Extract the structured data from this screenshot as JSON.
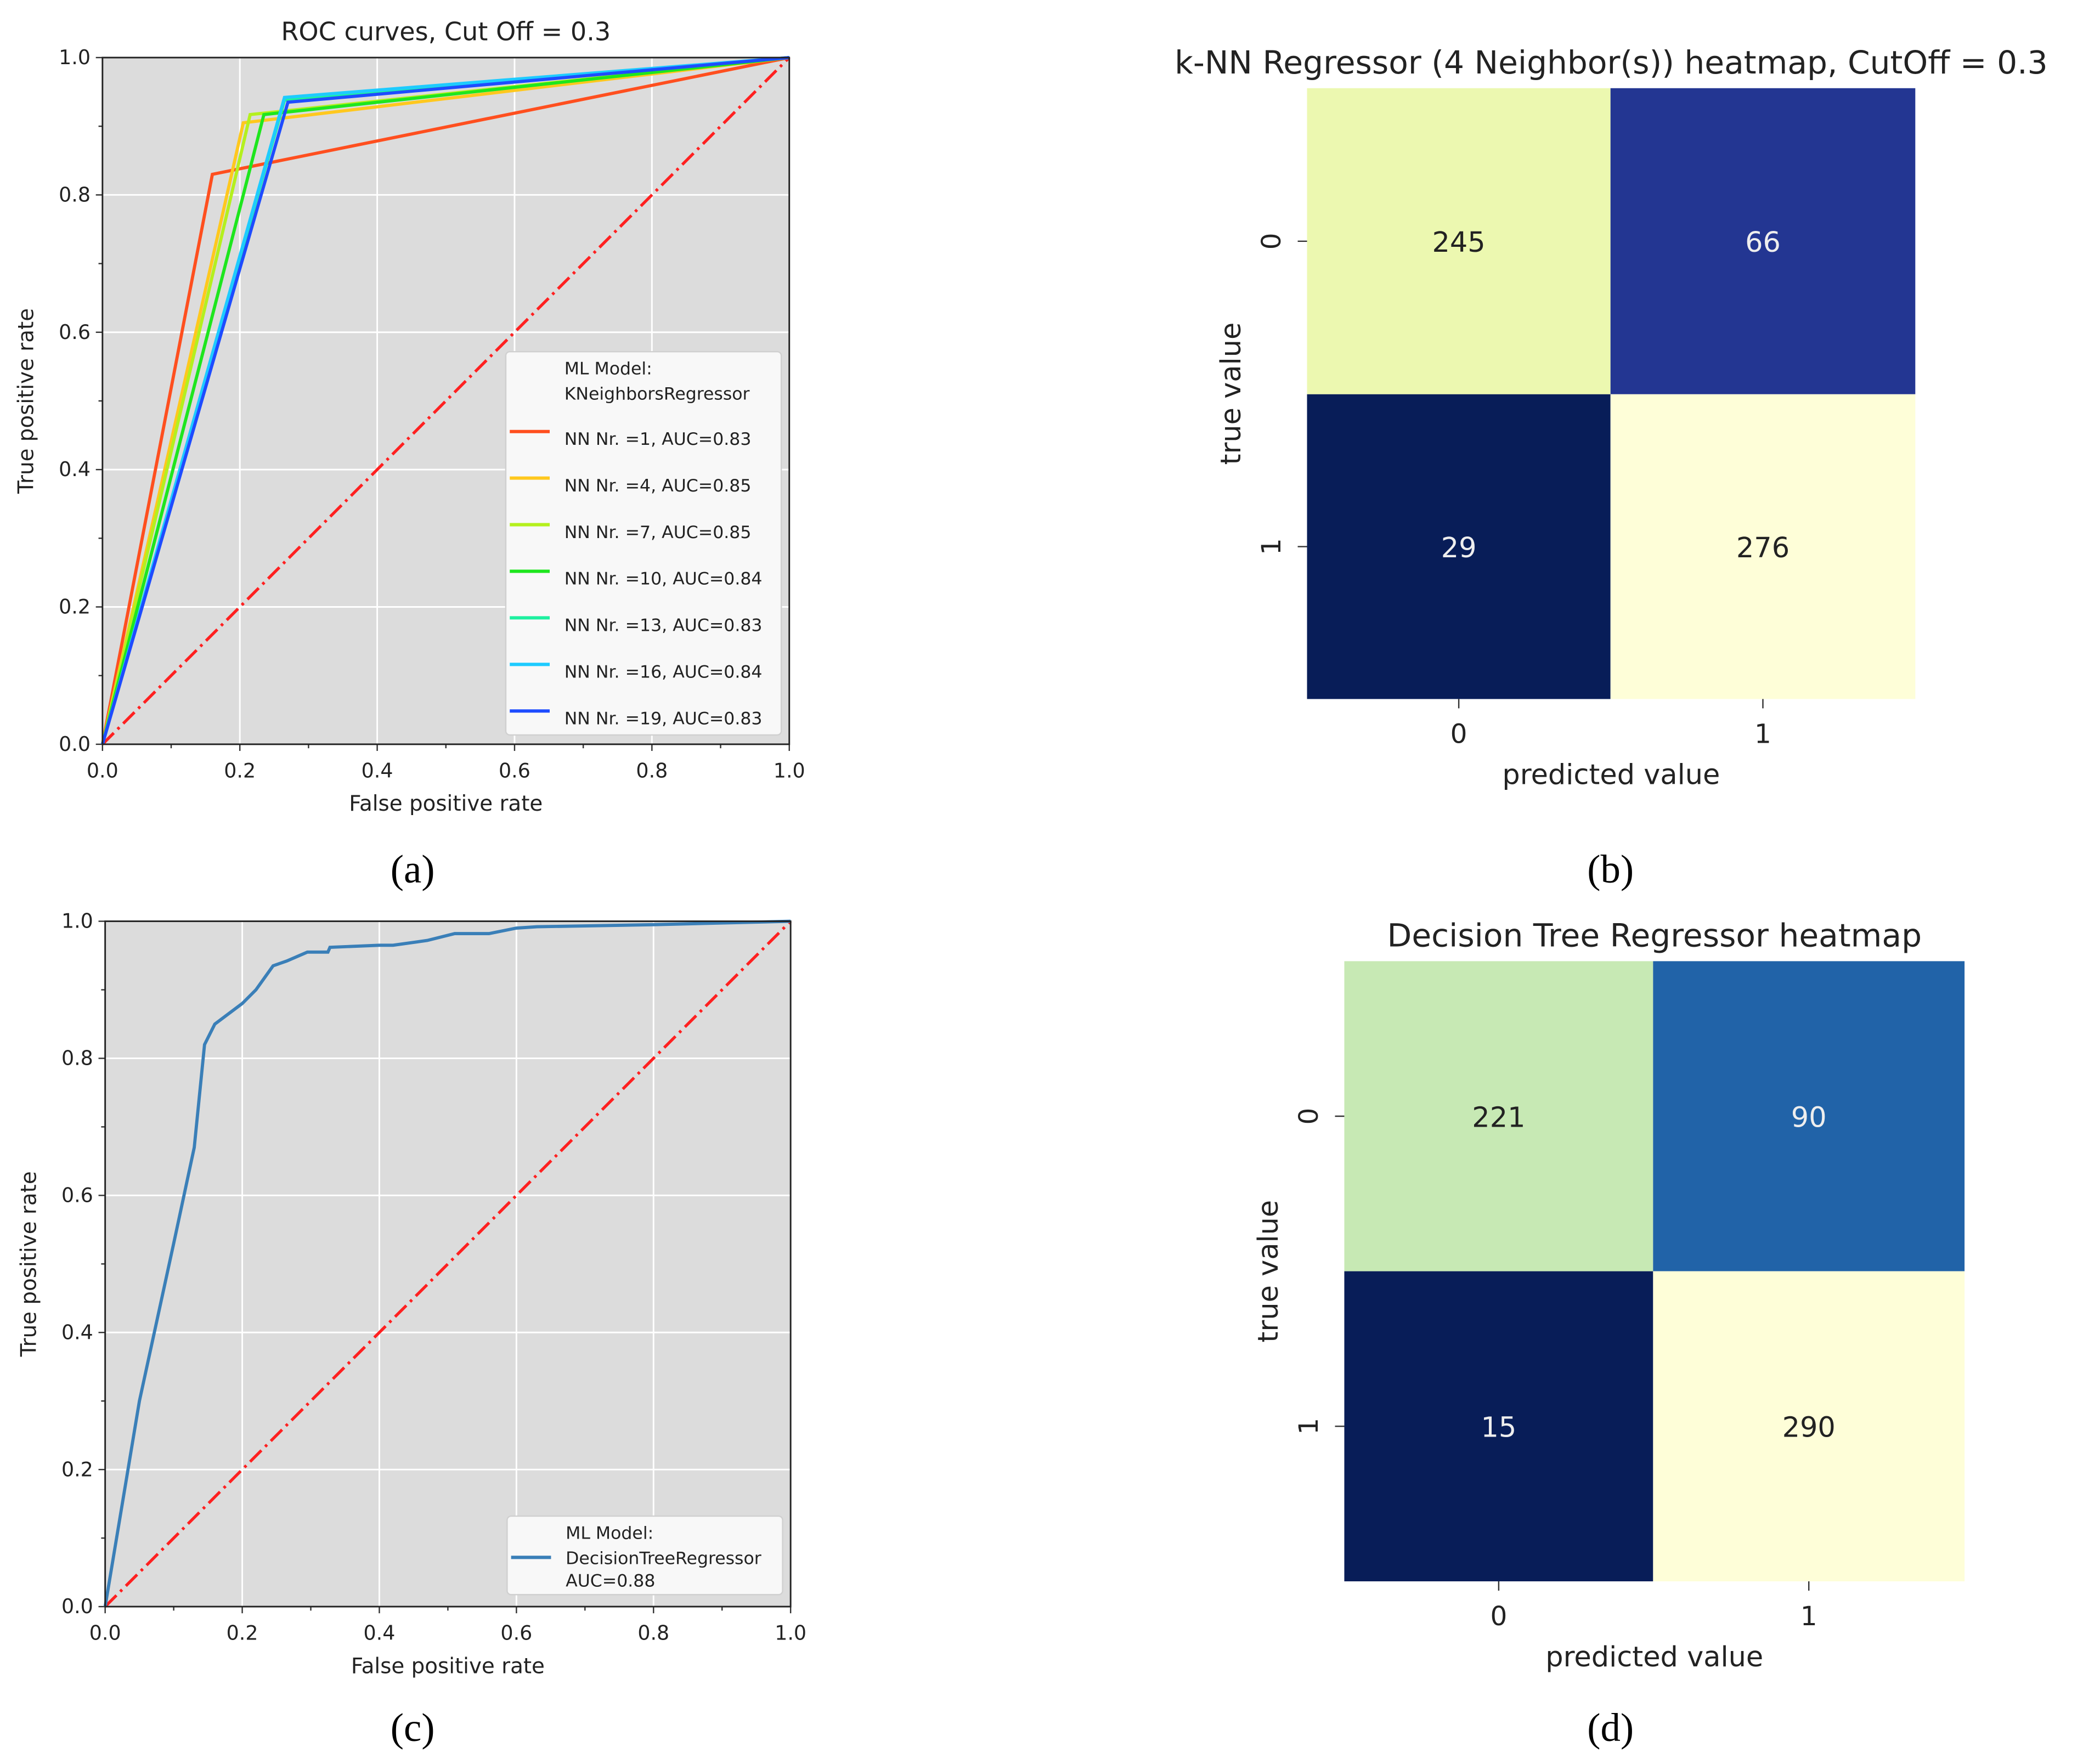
{
  "captions": [
    "(a)",
    "(b)",
    "(c)",
    "(d)"
  ],
  "caption_letters": [
    "a",
    "b",
    "c",
    "d"
  ],
  "chart_data": [
    {
      "type": "line",
      "title": "ROC curves, Cut Off = 0.3",
      "xlabel": "False positive rate",
      "ylabel": "True positive rate",
      "xlim": [
        0,
        1
      ],
      "ylim": [
        0,
        1
      ],
      "ticks": [
        "0.0",
        "0.2",
        "0.4",
        "0.6",
        "0.8",
        "1.0"
      ],
      "grid": true,
      "legend_title": [
        "ML Model:",
        "KNeighborsRegressor"
      ],
      "legend_placement": "lower-right",
      "diagonal_color": "#ff2020",
      "series": [
        {
          "name": "NN Nr. =1, AUC=0.83",
          "color": "#ff4f1f",
          "points": [
            [
              0,
              0
            ],
            [
              0.16,
              0.83
            ],
            [
              1,
              1
            ]
          ]
        },
        {
          "name": "NN Nr. =4, AUC=0.85",
          "color": "#ffc81e",
          "points": [
            [
              0,
              0
            ],
            [
              0.205,
              0.905
            ],
            [
              1,
              1
            ]
          ]
        },
        {
          "name": "NN Nr. =7, AUC=0.85",
          "color": "#b4f01e",
          "points": [
            [
              0,
              0
            ],
            [
              0.215,
              0.917
            ],
            [
              1,
              1
            ]
          ]
        },
        {
          "name": "NN Nr. =10, AUC=0.84",
          "color": "#1ee61e",
          "points": [
            [
              0,
              0
            ],
            [
              0.235,
              0.917
            ],
            [
              1,
              1
            ]
          ]
        },
        {
          "name": "NN Nr. =13, AUC=0.83",
          "color": "#1ef0a0",
          "points": [
            [
              0,
              0
            ],
            [
              0.265,
              0.938
            ],
            [
              1,
              1
            ]
          ]
        },
        {
          "name": "NN Nr. =16, AUC=0.84",
          "color": "#1ecbff",
          "points": [
            [
              0,
              0
            ],
            [
              0.265,
              0.942
            ],
            [
              1,
              1
            ]
          ]
        },
        {
          "name": "NN Nr. =19, AUC=0.83",
          "color": "#1e4cff",
          "points": [
            [
              0,
              0
            ],
            [
              0.27,
              0.935
            ],
            [
              1,
              1
            ]
          ]
        }
      ]
    },
    {
      "type": "heatmap",
      "title": "k-NN Regressor (4 Neighbor(s)) heatmap, CutOff = 0.3",
      "xlabel": "predicted value",
      "ylabel": "true value",
      "x_categories": [
        "0",
        "1"
      ],
      "y_categories": [
        "0",
        "1"
      ],
      "values": [
        [
          245,
          66
        ],
        [
          29,
          276
        ]
      ],
      "colors": [
        [
          "#ecf8b0",
          "#233692"
        ],
        [
          "#081d58",
          "#fefed8"
        ]
      ],
      "text_colors": [
        [
          "#222222",
          "#eeeeee"
        ],
        [
          "#eeeeee",
          "#222222"
        ]
      ]
    },
    {
      "type": "line",
      "title": "",
      "xlabel": "False positive rate",
      "ylabel": "True positive rate",
      "xlim": [
        0,
        1
      ],
      "ylim": [
        0,
        1
      ],
      "ticks": [
        "0.0",
        "0.2",
        "0.4",
        "0.6",
        "0.8",
        "1.0"
      ],
      "grid": true,
      "legend_title": [
        "ML Model:"
      ],
      "legend_placement": "lower-right",
      "diagonal_color": "#ff2020",
      "series": [
        {
          "name": "DecisionTreeRegressor",
          "name2": "AUC=0.88",
          "color": "#3a7fb8",
          "points": [
            [
              0,
              0
            ],
            [
              0.05,
              0.3
            ],
            [
              0.1,
              0.53
            ],
            [
              0.13,
              0.67
            ],
            [
              0.145,
              0.82
            ],
            [
              0.16,
              0.85
            ],
            [
              0.2,
              0.88
            ],
            [
              0.22,
              0.9
            ],
            [
              0.245,
              0.935
            ],
            [
              0.265,
              0.942
            ],
            [
              0.295,
              0.955
            ],
            [
              0.325,
              0.955
            ],
            [
              0.328,
              0.962
            ],
            [
              0.4,
              0.965
            ],
            [
              0.42,
              0.965
            ],
            [
              0.47,
              0.972
            ],
            [
              0.51,
              0.982
            ],
            [
              0.56,
              0.982
            ],
            [
              0.6,
              0.99
            ],
            [
              0.63,
              0.992
            ],
            [
              0.8,
              0.995
            ],
            [
              1,
              1
            ]
          ]
        }
      ]
    },
    {
      "type": "heatmap",
      "title": "Decision Tree Regressor heatmap",
      "xlabel": "predicted value",
      "ylabel": "true value",
      "x_categories": [
        "0",
        "1"
      ],
      "y_categories": [
        "0",
        "1"
      ],
      "values": [
        [
          221,
          90
        ],
        [
          15,
          290
        ]
      ],
      "colors": [
        [
          "#c7e9b4",
          "#2163a8"
        ],
        [
          "#081d58",
          "#fefed8"
        ]
      ],
      "text_colors": [
        [
          "#222222",
          "#eeeeee"
        ],
        [
          "#eeeeee",
          "#222222"
        ]
      ]
    }
  ]
}
